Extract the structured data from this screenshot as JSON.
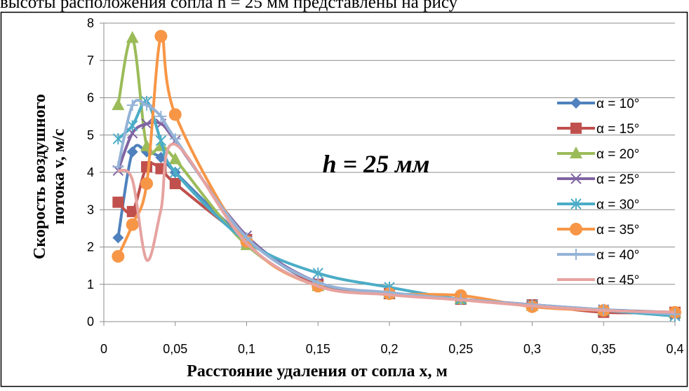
{
  "page": {
    "top_text": "высоты расположения сопла h = 25 мм представлены на рису"
  },
  "chart_data": {
    "type": "line",
    "title": "",
    "annotation": "h = 25 мм",
    "xlabel": "Расстояние удаления от сопла x, м",
    "ylabel_line1": "Скорость воздушного",
    "ylabel_line2": "потока v, м/с",
    "xlim": [
      0,
      0.4
    ],
    "ylim": [
      0,
      8
    ],
    "x_ticks": [
      "0",
      "0,05",
      "0,1",
      "0,15",
      "0,2",
      "0,25",
      "0,3",
      "0,35",
      "0,4"
    ],
    "y_ticks": [
      "0",
      "1",
      "2",
      "3",
      "4",
      "5",
      "6",
      "7",
      "8"
    ],
    "grid": "horizontal",
    "legend_position": "right",
    "series": [
      {
        "name": "α = 10°",
        "color": "#4F81BD",
        "marker": "diamond",
        "x": [
          0.01,
          0.02,
          0.03,
          0.04,
          0.05,
          0.1,
          0.15,
          0.2,
          0.25,
          0.3,
          0.35,
          0.4
        ],
        "y": [
          2.25,
          4.55,
          4.55,
          4.4,
          4.0,
          2.2,
          1.0,
          0.75,
          0.6,
          0.45,
          0.32,
          0.25
        ]
      },
      {
        "name": "α = 15°",
        "color": "#C0504D",
        "marker": "square",
        "x": [
          0.01,
          0.02,
          0.03,
          0.04,
          0.05,
          0.1,
          0.15,
          0.2,
          0.25,
          0.3,
          0.35,
          0.4
        ],
        "y": [
          3.2,
          2.95,
          4.15,
          4.1,
          3.7,
          2.2,
          1.0,
          0.75,
          0.6,
          0.45,
          0.25,
          0.25
        ]
      },
      {
        "name": "α = 20°",
        "color": "#9BBB59",
        "marker": "triangle",
        "x": [
          0.01,
          0.02,
          0.03,
          0.04,
          0.05,
          0.1,
          0.15,
          0.2,
          0.25,
          0.3,
          0.35,
          0.4
        ],
        "y": [
          5.8,
          7.6,
          4.7,
          4.7,
          4.35,
          2.05,
          0.95,
          0.75,
          0.6,
          0.42,
          0.3,
          0.22
        ]
      },
      {
        "name": "α = 25°",
        "color": "#8064A2",
        "marker": "x",
        "x": [
          0.01,
          0.02,
          0.03,
          0.04,
          0.05,
          0.1,
          0.15,
          0.2,
          0.25,
          0.3,
          0.35,
          0.4
        ],
        "y": [
          4.05,
          5.05,
          5.3,
          5.3,
          4.85,
          2.3,
          1.05,
          0.75,
          0.6,
          0.45,
          0.32,
          0.2
        ]
      },
      {
        "name": "α = 30°",
        "color": "#4BACC6",
        "marker": "star",
        "x": [
          0.01,
          0.02,
          0.03,
          0.04,
          0.05,
          0.1,
          0.15,
          0.2,
          0.25,
          0.3,
          0.35,
          0.4
        ],
        "y": [
          4.9,
          5.25,
          5.9,
          4.85,
          4.0,
          2.15,
          1.3,
          0.92,
          0.6,
          0.45,
          0.3,
          0.15
        ]
      },
      {
        "name": "α = 35°",
        "color": "#F79646",
        "marker": "circle",
        "x": [
          0.01,
          0.02,
          0.03,
          0.04,
          0.05,
          0.1,
          0.15,
          0.2,
          0.25,
          0.3,
          0.35,
          0.4
        ],
        "y": [
          1.75,
          2.6,
          3.7,
          7.65,
          5.55,
          2.15,
          0.95,
          0.75,
          0.7,
          0.4,
          0.3,
          0.25
        ]
      },
      {
        "name": "α = 40°",
        "color": "#95B3D7",
        "marker": "plus",
        "x": [
          0.01,
          0.02,
          0.03,
          0.04,
          0.05,
          0.1,
          0.15,
          0.2,
          0.25,
          0.3,
          0.35,
          0.4
        ],
        "y": [
          4.15,
          5.8,
          5.8,
          5.5,
          4.9,
          2.25,
          1.05,
          0.78,
          0.6,
          0.45,
          0.32,
          0.2
        ]
      },
      {
        "name": "α = 45°",
        "color": "#E6A3A1",
        "marker": "none",
        "x": [
          0.01,
          0.02,
          0.03,
          0.04,
          0.05,
          0.1,
          0.15,
          0.2,
          0.25,
          0.3,
          0.35,
          0.4
        ],
        "y": [
          4.05,
          3.8,
          1.65,
          3.0,
          4.75,
          2.1,
          0.95,
          0.72,
          0.58,
          0.42,
          0.3,
          0.25
        ]
      }
    ]
  }
}
